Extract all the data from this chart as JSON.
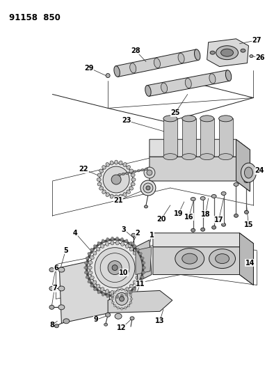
{
  "title": "91158  850",
  "bg_color": "#ffffff",
  "line_color": "#1a1a1a",
  "label_color": "#000000",
  "fig_width": 3.94,
  "fig_height": 5.33,
  "dpi": 100,
  "shaft_color": "#c8c8c8",
  "shaft_dark": "#909090",
  "part_light": "#e0e0e0",
  "part_mid": "#b8b8b8",
  "chain_color": "#505050"
}
